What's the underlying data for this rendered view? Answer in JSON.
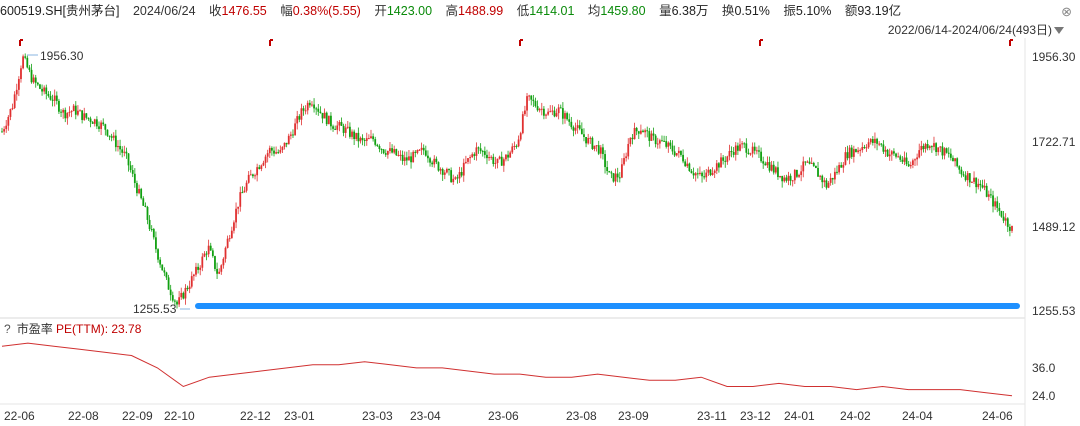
{
  "header": {
    "code": "600519.SH[贵州茅台]",
    "date": "2024/06/24",
    "close_label": "收",
    "close": "1476.55",
    "chg_label": "幅",
    "chg": "0.38%(5.55)",
    "open_label": "开",
    "open": "1423.00",
    "high_label": "高",
    "high": "1488.99",
    "low_label": "低",
    "low": "1414.01",
    "avg_label": "均",
    "avg": "1459.80",
    "vol_label": "量",
    "vol": "6.38万",
    "turn_label": "换",
    "turn": "0.51%",
    "amp_label": "振",
    "amp": "5.10%",
    "amt_label": "额",
    "amt": "93.19亿"
  },
  "range_text": "2022/06/14-2024/06/24(493日)",
  "indicator": {
    "help": "?",
    "name": "市盈率",
    "pe_label": "PE(TTM): 23.78"
  },
  "colors": {
    "up": "#e03030",
    "down": "#10a010",
    "line": "#d03030",
    "support": "#1e90ff",
    "marker": "#c00000"
  },
  "chart_data": {
    "type": "line",
    "y_ticks": [
      "1956.30",
      "1722.71",
      "1489.12",
      "1255.53"
    ],
    "y_range": [
      1255.53,
      1956.3
    ],
    "max_label": "1956.30",
    "min_label": "1255.53",
    "support_level": 1255.53,
    "pe_ticks": [
      "36.0",
      "24.0"
    ],
    "x_labels": [
      "22-06",
      "22-08",
      "22-09",
      "22-10",
      "22-12",
      "23-01",
      "23-03",
      "23-04",
      "23-06",
      "23-08",
      "23-09",
      "23-11",
      "23-12",
      "24-01",
      "24-02",
      "24-04",
      "24-06"
    ],
    "series": [
      {
        "values": [
          1750,
          1820,
          1956,
          1890,
          1860,
          1840,
          1800,
          1810,
          1790,
          1780,
          1760,
          1720,
          1680,
          1600,
          1520,
          1420,
          1330,
          1270,
          1320,
          1370,
          1430,
          1350,
          1460,
          1560,
          1620,
          1660,
          1700,
          1690,
          1740,
          1800,
          1840,
          1800,
          1770,
          1760,
          1740,
          1720,
          1730,
          1700,
          1690,
          1670,
          1680,
          1700,
          1660,
          1640,
          1610,
          1660,
          1700,
          1690,
          1660,
          1680,
          1720,
          1840,
          1820,
          1800,
          1810,
          1780,
          1750,
          1720,
          1700,
          1620,
          1630,
          1740,
          1760,
          1730,
          1720,
          1700,
          1680,
          1640,
          1620,
          1650,
          1670,
          1700,
          1710,
          1690,
          1670,
          1640,
          1620,
          1630,
          1660,
          1640,
          1600,
          1640,
          1690,
          1700,
          1720,
          1720,
          1690,
          1680,
          1650,
          1700,
          1720,
          1700,
          1680,
          1640,
          1620,
          1600,
          1560,
          1520,
          1480
        ]
      },
      {
        "values": [
          40,
          41,
          40,
          39,
          38,
          37,
          33,
          27,
          30,
          31,
          32,
          33,
          34,
          34,
          35,
          34,
          33,
          33,
          32,
          31,
          31,
          30,
          30,
          31,
          30,
          29,
          29,
          30,
          27,
          27,
          28,
          27,
          27,
          26,
          27,
          26,
          26,
          26,
          25,
          24
        ]
      }
    ]
  }
}
